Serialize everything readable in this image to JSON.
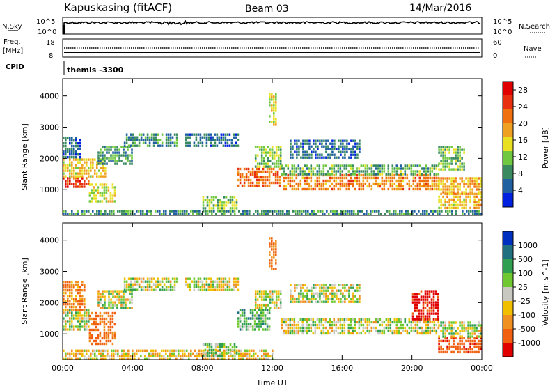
{
  "header": {
    "station": "Kapuskasing (fitACF)",
    "beam": "Beam 03",
    "date": "14/Mar/2016"
  },
  "top_panels": {
    "nsky_label": "N.Sky",
    "nsky_ticks": [
      "10^5",
      "10^0"
    ],
    "nsearch_label": "N.Search",
    "nsearch_ticks": [
      "10^5",
      "10^0"
    ],
    "freq_label": "Freq.",
    "freq_unit": "[MHz]",
    "freq_ticks": [
      "18",
      "8"
    ],
    "nave_label": "Nave",
    "nave_ticks": [
      "60",
      "0"
    ],
    "cpid_label": "CPID",
    "cpid_value": "themis -3300"
  },
  "colors": {
    "power": [
      "#0020e0",
      "#2060a0",
      "#3a8a60",
      "#70c840",
      "#e8e020",
      "#f0a020",
      "#f07010",
      "#e83010",
      "#e00000"
    ],
    "velocity": [
      "#0030c0",
      "#207080",
      "#30a050",
      "#70c830",
      "#c8c8c0",
      "#f0c000",
      "#f09020",
      "#f06010",
      "#e00000"
    ]
  },
  "chart_data": [
    {
      "type": "heatmap",
      "name": "power",
      "ylabel": "Slant Range [km]",
      "xlabel": "Time UT",
      "x_ticks": [
        "00:00",
        "04:00",
        "08:00",
        "12:00",
        "16:00",
        "20:00",
        "00:00"
      ],
      "y_ticks": [
        "1000",
        "2000",
        "3000",
        "4000"
      ],
      "xlim_hours": [
        0,
        24
      ],
      "ylim_km": [
        180,
        4550
      ],
      "colorbar": {
        "label": "Power [dB]",
        "ticks": [
          "4",
          "8",
          "12",
          "16",
          "20",
          "24",
          "28"
        ],
        "range": [
          0,
          30
        ]
      },
      "echo_regions": [
        {
          "t": [
            0.0,
            1.5
          ],
          "r": [
            1100,
            1400
          ],
          "value": 26
        },
        {
          "t": [
            0.0,
            2.5
          ],
          "r": [
            1400,
            2000
          ],
          "value": 16
        },
        {
          "t": [
            0.0,
            1.0
          ],
          "r": [
            2000,
            2700
          ],
          "value": 6
        },
        {
          "t": [
            1.5,
            3.0
          ],
          "r": [
            600,
            1200
          ],
          "value": 14
        },
        {
          "t": [
            2.0,
            4.0
          ],
          "r": [
            1800,
            2400
          ],
          "value": 9
        },
        {
          "t": [
            3.5,
            6.5
          ],
          "r": [
            2400,
            2800
          ],
          "value": 8
        },
        {
          "t": [
            7.0,
            10.0
          ],
          "r": [
            2400,
            2800
          ],
          "value": 6
        },
        {
          "t": [
            10.0,
            12.5
          ],
          "r": [
            1100,
            1700
          ],
          "value": 22
        },
        {
          "t": [
            11.0,
            12.5
          ],
          "r": [
            1700,
            2400
          ],
          "value": 12
        },
        {
          "t": [
            11.8,
            12.2
          ],
          "r": [
            3100,
            4100
          ],
          "value": 14
        },
        {
          "t": [
            12.5,
            21.5
          ],
          "r": [
            1000,
            1500
          ],
          "value": 20
        },
        {
          "t": [
            12.5,
            21.5
          ],
          "r": [
            1500,
            1800
          ],
          "value": 10
        },
        {
          "t": [
            13.0,
            17.0
          ],
          "r": [
            2000,
            2600
          ],
          "value": 6
        },
        {
          "t": [
            21.5,
            24.0
          ],
          "r": [
            900,
            1400
          ],
          "value": 18
        },
        {
          "t": [
            21.5,
            24.0
          ],
          "r": [
            400,
            900
          ],
          "value": 17
        },
        {
          "t": [
            21.5,
            23.0
          ],
          "r": [
            1600,
            2400
          ],
          "value": 12
        },
        {
          "t": [
            8.0,
            10.0
          ],
          "r": [
            350,
            800
          ],
          "value": 12
        },
        {
          "t": [
            0.0,
            24.0
          ],
          "r": [
            200,
            350
          ],
          "value": 8
        }
      ]
    },
    {
      "type": "heatmap",
      "name": "velocity",
      "ylabel": "Slant Range [km]",
      "xlabel": "Time UT",
      "x_ticks": [
        "00:00",
        "04:00",
        "08:00",
        "12:00",
        "16:00",
        "20:00",
        "00:00"
      ],
      "y_ticks": [
        "1000",
        "2000",
        "3000",
        "4000"
      ],
      "xlim_hours": [
        0,
        24
      ],
      "ylim_km": [
        180,
        4550
      ],
      "colorbar": {
        "label": "Velocity [m s^-1]",
        "ticks": [
          "1000",
          "500",
          "100",
          "25",
          "-25",
          "-100",
          "-500",
          "-1000"
        ],
        "range": [
          -1000,
          1000
        ]
      },
      "echo_regions": [
        {
          "t": [
            0.0,
            1.5
          ],
          "r": [
            1100,
            1800
          ],
          "value": 0
        },
        {
          "t": [
            0.0,
            1.2
          ],
          "r": [
            1800,
            2700
          ],
          "value": -200
        },
        {
          "t": [
            1.5,
            3.0
          ],
          "r": [
            700,
            1700
          ],
          "value": -300
        },
        {
          "t": [
            2.0,
            4.0
          ],
          "r": [
            1800,
            2400
          ],
          "value": 0
        },
        {
          "t": [
            3.5,
            6.5
          ],
          "r": [
            2400,
            2800
          ],
          "value": 0
        },
        {
          "t": [
            7.0,
            10.0
          ],
          "r": [
            2400,
            2800
          ],
          "value": 0
        },
        {
          "t": [
            10.0,
            11.8
          ],
          "r": [
            1100,
            1800
          ],
          "value": 150
        },
        {
          "t": [
            11.0,
            12.5
          ],
          "r": [
            1800,
            2400
          ],
          "value": 0
        },
        {
          "t": [
            11.8,
            12.2
          ],
          "r": [
            3100,
            4100
          ],
          "value": -300
        },
        {
          "t": [
            12.5,
            21.5
          ],
          "r": [
            1000,
            1500
          ],
          "value": 0
        },
        {
          "t": [
            13.0,
            17.0
          ],
          "r": [
            2000,
            2600
          ],
          "value": 0
        },
        {
          "t": [
            20.0,
            21.5
          ],
          "r": [
            1500,
            2400
          ],
          "value": -600
        },
        {
          "t": [
            21.5,
            24.0
          ],
          "r": [
            400,
            900
          ],
          "value": -400
        },
        {
          "t": [
            21.5,
            24.0
          ],
          "r": [
            900,
            1400
          ],
          "value": 0
        },
        {
          "t": [
            0.0,
            12.0
          ],
          "r": [
            200,
            500
          ],
          "value": -80
        },
        {
          "t": [
            8.0,
            10.0
          ],
          "r": [
            300,
            700
          ],
          "value": 80
        }
      ]
    }
  ]
}
